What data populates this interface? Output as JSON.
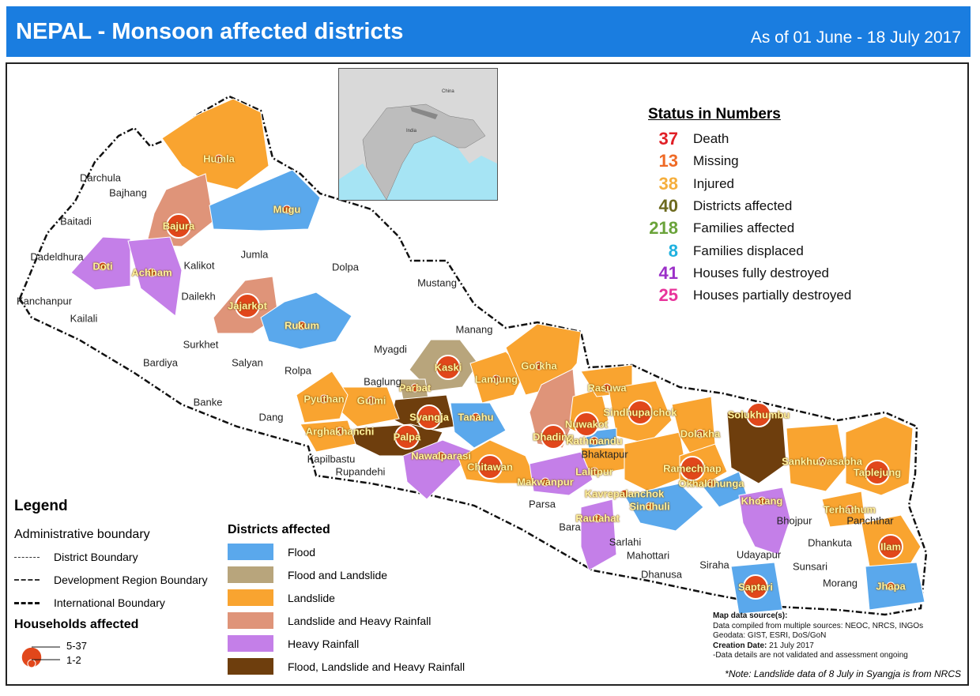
{
  "header": {
    "title": "NEPAL - Monsoon affected districts",
    "date_range": "As of 01 June - 18 July 2017"
  },
  "colors": {
    "header": "#1a7de0",
    "flood": "#5aa8ec",
    "flood_landslide": "#b8a57c",
    "landslide": "#f9a430",
    "landslide_rainfall": "#df9479",
    "heavy_rainfall": "#c47fe8",
    "flood_landslide_rainfall": "#6e3e0d",
    "circle": "#e1471b"
  },
  "inset": {
    "labels": [
      "China",
      "India"
    ]
  },
  "status": {
    "title": "Status in Numbers",
    "items": [
      {
        "value": "37",
        "label": "Death",
        "color": "#e01f26"
      },
      {
        "value": "13",
        "label": "Missing",
        "color": "#ef6a26"
      },
      {
        "value": "38",
        "label": "Injured",
        "color": "#f5ae3c"
      },
      {
        "value": "40",
        "label": "Districts affected",
        "color": "#6d6a1e"
      },
      {
        "value": "218",
        "label": "Families affected",
        "color": "#6aa33a"
      },
      {
        "value": "8",
        "label": "Families displaced",
        "color": "#1fb1df"
      },
      {
        "value": "41",
        "label": "Houses fully destroyed",
        "color": "#9b2fc8"
      },
      {
        "value": "25",
        "label": "Houses partially destroyed",
        "color": "#e8349b"
      }
    ]
  },
  "legend": {
    "title": "Legend",
    "admin_title": "Administrative boundary",
    "boundaries": [
      "District Boundary",
      "Development Region Boundary",
      "International Boundary"
    ],
    "households_title": "Households affected",
    "households_classes": [
      "5-37",
      "1-2"
    ],
    "districts_title": "Districts affected",
    "categories": [
      "Flood",
      "Flood and Landslide",
      "Landslide",
      "Landslide and Heavy Rainfall",
      "Heavy Rainfall",
      "Flood, Landslide and Heavy Rainfall"
    ]
  },
  "districts_affected": [
    {
      "name": "Humla",
      "category": "Landslide",
      "households": "1-2"
    },
    {
      "name": "Bajura",
      "category": "Landslide and Heavy Rainfall",
      "households": "5-37"
    },
    {
      "name": "Mugu",
      "category": "Flood",
      "households": "1-2"
    },
    {
      "name": "Doti",
      "category": "Heavy Rainfall",
      "households": "1-2"
    },
    {
      "name": "Achham",
      "category": "Heavy Rainfall",
      "households": "1-2"
    },
    {
      "name": "Jajarkot",
      "category": "Landslide and Heavy Rainfall",
      "households": "5-37"
    },
    {
      "name": "Rukum",
      "category": "Flood",
      "households": "1-2"
    },
    {
      "name": "Kaski",
      "category": "Flood and Landslide",
      "households": "5-37"
    },
    {
      "name": "Parbat",
      "category": "Flood and Landslide",
      "households": "1-2"
    },
    {
      "name": "Syangja",
      "category": "Flood, Landslide and Heavy Rainfall",
      "households": "5-37"
    },
    {
      "name": "Palpa",
      "category": "Flood, Landslide and Heavy Rainfall",
      "households": "5-37"
    },
    {
      "name": "Gulmi",
      "category": "Landslide",
      "households": "1-2"
    },
    {
      "name": "Pyuthan",
      "category": "Landslide",
      "households": "1-2"
    },
    {
      "name": "Arghakhanchi",
      "category": "Landslide",
      "households": "1-2"
    },
    {
      "name": "Tanahu",
      "category": "Flood",
      "households": "1-2"
    },
    {
      "name": "Lamjung",
      "category": "Landslide",
      "households": "1-2"
    },
    {
      "name": "Gorkha",
      "category": "Landslide",
      "households": "1-2"
    },
    {
      "name": "Nawalparasi",
      "category": "Heavy Rainfall",
      "households": "1-2"
    },
    {
      "name": "Chitawan",
      "category": "Landslide",
      "households": "5-37"
    },
    {
      "name": "Dhading",
      "category": "Landslide and Heavy Rainfall",
      "households": "5-37"
    },
    {
      "name": "Nuwakot",
      "category": "Landslide",
      "households": "5-37"
    },
    {
      "name": "Rasuwa",
      "category": "Landslide",
      "households": "1-2"
    },
    {
      "name": "Sindhupalchok",
      "category": "Landslide",
      "households": "5-37"
    },
    {
      "name": "Kathmandu",
      "category": "Flood",
      "households": "1-2"
    },
    {
      "name": "Lalitpur",
      "category": "Landslide",
      "households": "1-2"
    },
    {
      "name": "Makwanpur",
      "category": "Heavy Rainfall",
      "households": "1-2"
    },
    {
      "name": "Kavrepalanchok",
      "category": "Landslide",
      "households": "1-2"
    },
    {
      "name": "Dolakha",
      "category": "Landslide",
      "households": "1-2"
    },
    {
      "name": "Ramechhap",
      "category": "Landslide",
      "households": "5-37"
    },
    {
      "name": "Solukhumbu",
      "category": "Flood, Landslide and Heavy Rainfall",
      "households": "5-37"
    },
    {
      "name": "Okhaldhunga",
      "category": "Flood",
      "households": "1-2"
    },
    {
      "name": "Sindhuli",
      "category": "Flood",
      "households": "1-2"
    },
    {
      "name": "Rautahat",
      "category": "Heavy Rainfall",
      "households": "1-2"
    },
    {
      "name": "Khotang",
      "category": "Heavy Rainfall",
      "households": "1-2"
    },
    {
      "name": "Sankhuwasabha",
      "category": "Landslide",
      "households": "1-2"
    },
    {
      "name": "Taplejung",
      "category": "Landslide",
      "households": "5-37"
    },
    {
      "name": "Terhathum",
      "category": "Landslide",
      "households": "1-2"
    },
    {
      "name": "Ilam",
      "category": "Landslide",
      "households": "5-37"
    },
    {
      "name": "Jhapa",
      "category": "Flood",
      "households": "1-2"
    },
    {
      "name": "Saptari",
      "category": "Flood",
      "households": "5-37"
    }
  ],
  "districts_other": [
    "Darchula",
    "Bajhang",
    "Baitadi",
    "Dadeldhura",
    "Kanchanpur",
    "Kailali",
    "Kalikot",
    "Dailekh",
    "Jumla",
    "Dolpa",
    "Mustang",
    "Manang",
    "Myagdi",
    "Baglung",
    "Surkhet",
    "Bardiya",
    "Salyan",
    "Rolpa",
    "Banke",
    "Dang",
    "Kapilbastu",
    "Rupandehi",
    "Parsa",
    "Bara",
    "Sarlahi",
    "Mahottari",
    "Dhanusa",
    "Siraha",
    "Udayapur",
    "Sunsari",
    "Morang",
    "Dhankuta",
    "Bhojpur",
    "Panchthar",
    "Bhaktapur"
  ],
  "source": {
    "heading": "Map data source(s):",
    "line1": "Data compiled from multiple sources: NEOC, NRCS, INGOs",
    "line2": "Geodata: GIST, ESRI, DoS/GoN",
    "creation_label": "Creation Date:",
    "creation_value": "21 July 2017",
    "line4": "-Data details are not validated and assessment ongoing"
  },
  "note": "*Note: Landslide data of 8 July in Syangja is from NRCS"
}
